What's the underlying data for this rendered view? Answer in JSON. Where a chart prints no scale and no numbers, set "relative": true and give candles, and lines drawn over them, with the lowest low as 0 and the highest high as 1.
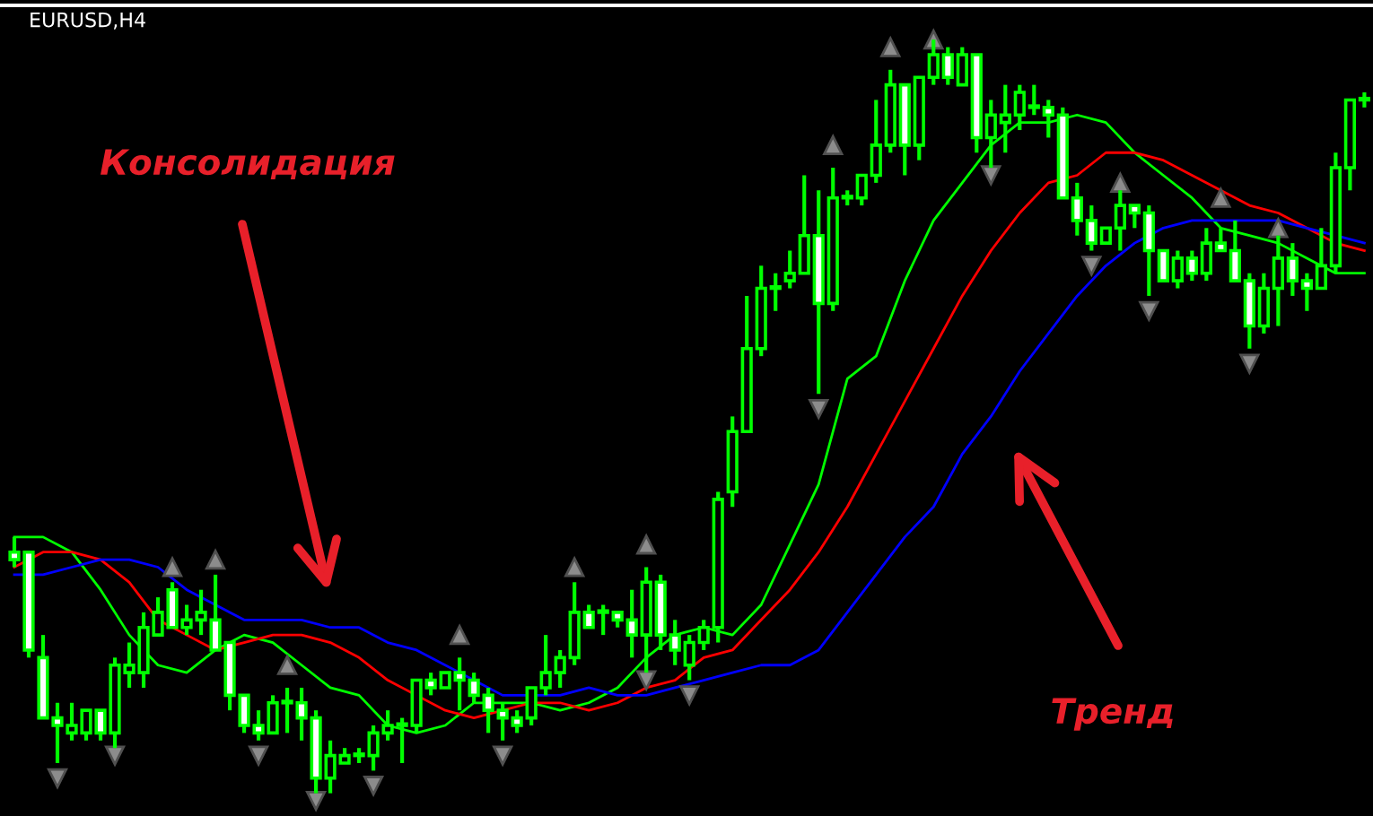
{
  "chart_data": {
    "type": "candlestick",
    "title": "EURUSD,H4",
    "relative": true,
    "color": "#00ff00",
    "colors": [
      "#ffffff",
      "#ffffff",
      "#ffffff",
      "#ffffff",
      "#000000",
      "#000000",
      "#ffffff",
      "#000000",
      "#000000",
      "#000000",
      "#000000",
      "#ffffff",
      "#000000",
      "#000000",
      "#ffffff",
      "#ffffff",
      "#ffffff",
      "#ffffff",
      "#000000",
      "#000000",
      "#ffffff",
      "#ffffff",
      "#000000",
      "#000000",
      "#ffffff",
      "#000000",
      "#000000",
      "#000000",
      "#000000",
      "#ffffff",
      "#000000",
      "#ffffff",
      "#ffffff",
      "#ffffff",
      "#ffffff",
      "#ffffff",
      "#000000",
      "#000000",
      "#000000",
      "#000000",
      "#ffffff",
      "#000000",
      "#ffffff",
      "#ffffff",
      "#000000",
      "#ffffff",
      "#ffffff",
      "#000000",
      "#000000",
      "#000000",
      "#000000",
      "#000000",
      "#000000",
      "#000000",
      "#000000",
      "#000000",
      "#ffffff",
      "#000000",
      "#ffffff",
      "#000000",
      "#000000",
      "#000000",
      "#ffffff",
      "#000000",
      "#000000",
      "#ffffff",
      "#000000",
      "#ffffff",
      "#000000",
      "#000000",
      "#000000",
      "#000000",
      "#ffffff",
      "#ffffff",
      "#ffffff",
      "#ffffff",
      "#000000",
      "#000000",
      "#ffffff",
      "#ffffff",
      "#ffffff",
      "#000000",
      "#ffffff",
      "#000000",
      "#ffffff",
      "#ffffff",
      "#ffffff",
      "#000000",
      "#000000",
      "#ffffff",
      "#ffffff",
      "#000000",
      "#000000",
      "#000000",
      "#000000"
    ],
    "categories": [
      null,
      null,
      null,
      null,
      null,
      null,
      null,
      null,
      null,
      null,
      null,
      null,
      null,
      null,
      null,
      null,
      null,
      null,
      null,
      null,
      null,
      null,
      null,
      null,
      null,
      null,
      null,
      null,
      null,
      null,
      null,
      null,
      null,
      null,
      null,
      null,
      null,
      null,
      null,
      null,
      null,
      null,
      null,
      null,
      null,
      null,
      null,
      null,
      null,
      null,
      null,
      null,
      null,
      null,
      null,
      null,
      null,
      null,
      null,
      null,
      null,
      null,
      null,
      null,
      null,
      null,
      null,
      null,
      null,
      null,
      null,
      null,
      null,
      null,
      null,
      null,
      null,
      null,
      null,
      null,
      null,
      null,
      null,
      null,
      null,
      null,
      null,
      null,
      null,
      null,
      null,
      null,
      null,
      null,
      null
    ],
    "ohlc": [
      [
        0.32,
        0.34,
        0.3,
        0.31
      ],
      [
        0.32,
        0.32,
        0.18,
        0.19
      ],
      [
        0.18,
        0.21,
        0.1,
        0.1
      ],
      [
        0.1,
        0.12,
        0.04,
        0.09
      ],
      [
        0.08,
        0.12,
        0.07,
        0.09
      ],
      [
        0.08,
        0.11,
        0.07,
        0.11
      ],
      [
        0.11,
        0.11,
        0.07,
        0.08
      ],
      [
        0.08,
        0.18,
        0.06,
        0.17
      ],
      [
        0.16,
        0.2,
        0.14,
        0.17
      ],
      [
        0.16,
        0.24,
        0.14,
        0.22
      ],
      [
        0.21,
        0.26,
        0.21,
        0.24
      ],
      [
        0.27,
        0.28,
        0.22,
        0.22
      ],
      [
        0.22,
        0.25,
        0.21,
        0.23
      ],
      [
        0.23,
        0.27,
        0.21,
        0.24
      ],
      [
        0.23,
        0.29,
        0.19,
        0.19
      ],
      [
        0.2,
        0.2,
        0.11,
        0.13
      ],
      [
        0.13,
        0.13,
        0.08,
        0.09
      ],
      [
        0.09,
        0.11,
        0.07,
        0.08
      ],
      [
        0.08,
        0.13,
        0.08,
        0.12
      ],
      [
        0.12,
        0.14,
        0.08,
        0.12
      ],
      [
        0.12,
        0.14,
        0.07,
        0.1
      ],
      [
        0.1,
        0.11,
        0.0,
        0.02
      ],
      [
        0.02,
        0.07,
        0.0,
        0.05
      ],
      [
        0.04,
        0.06,
        0.04,
        0.05
      ],
      [
        0.05,
        0.06,
        0.04,
        0.05
      ],
      [
        0.05,
        0.09,
        0.03,
        0.08
      ],
      [
        0.08,
        0.11,
        0.07,
        0.09
      ],
      [
        0.09,
        0.1,
        0.04,
        0.09
      ],
      [
        0.09,
        0.15,
        0.08,
        0.15
      ],
      [
        0.15,
        0.16,
        0.13,
        0.14
      ],
      [
        0.14,
        0.16,
        0.14,
        0.16
      ],
      [
        0.16,
        0.18,
        0.11,
        0.15
      ],
      [
        0.15,
        0.16,
        0.12,
        0.13
      ],
      [
        0.13,
        0.14,
        0.08,
        0.11
      ],
      [
        0.11,
        0.12,
        0.07,
        0.1
      ],
      [
        0.1,
        0.11,
        0.08,
        0.09
      ],
      [
        0.1,
        0.14,
        0.09,
        0.14
      ],
      [
        0.14,
        0.21,
        0.13,
        0.16
      ],
      [
        0.16,
        0.19,
        0.14,
        0.18
      ],
      [
        0.18,
        0.28,
        0.17,
        0.24
      ],
      [
        0.24,
        0.25,
        0.22,
        0.22
      ],
      [
        0.24,
        0.25,
        0.21,
        0.24
      ],
      [
        0.24,
        0.24,
        0.22,
        0.23
      ],
      [
        0.23,
        0.27,
        0.18,
        0.21
      ],
      [
        0.21,
        0.3,
        0.16,
        0.28
      ],
      [
        0.28,
        0.29,
        0.19,
        0.21
      ],
      [
        0.21,
        0.23,
        0.17,
        0.19
      ],
      [
        0.17,
        0.21,
        0.15,
        0.2
      ],
      [
        0.2,
        0.23,
        0.19,
        0.22
      ],
      [
        0.22,
        0.4,
        0.2,
        0.39
      ],
      [
        0.4,
        0.5,
        0.38,
        0.48
      ],
      [
        0.48,
        0.66,
        0.48,
        0.59
      ],
      [
        0.59,
        0.7,
        0.58,
        0.67
      ],
      [
        0.67,
        0.69,
        0.64,
        0.67
      ],
      [
        0.68,
        0.72,
        0.67,
        0.69
      ],
      [
        0.69,
        0.82,
        0.69,
        0.74
      ],
      [
        0.74,
        0.8,
        0.53,
        0.65
      ],
      [
        0.65,
        0.83,
        0.64,
        0.79
      ],
      [
        0.79,
        0.8,
        0.78,
        0.79
      ],
      [
        0.79,
        0.82,
        0.78,
        0.82
      ],
      [
        0.82,
        0.92,
        0.81,
        0.86
      ],
      [
        0.86,
        0.96,
        0.85,
        0.94
      ],
      [
        0.94,
        0.94,
        0.82,
        0.86
      ],
      [
        0.86,
        0.95,
        0.84,
        0.95
      ],
      [
        0.95,
        1.0,
        0.94,
        0.98
      ],
      [
        0.98,
        0.99,
        0.94,
        0.95
      ],
      [
        0.94,
        0.99,
        0.94,
        0.98
      ],
      [
        0.98,
        0.98,
        0.85,
        0.87
      ],
      [
        0.87,
        0.92,
        0.83,
        0.9
      ],
      [
        0.89,
        0.94,
        0.85,
        0.9
      ],
      [
        0.9,
        0.94,
        0.88,
        0.93
      ],
      [
        0.91,
        0.94,
        0.9,
        0.91
      ],
      [
        0.91,
        0.92,
        0.87,
        0.9
      ],
      [
        0.9,
        0.91,
        0.79,
        0.79
      ],
      [
        0.79,
        0.81,
        0.74,
        0.76
      ],
      [
        0.76,
        0.78,
        0.72,
        0.73
      ],
      [
        0.73,
        0.75,
        0.73,
        0.75
      ],
      [
        0.75,
        0.8,
        0.72,
        0.78
      ],
      [
        0.78,
        0.78,
        0.75,
        0.77
      ],
      [
        0.77,
        0.78,
        0.66,
        0.72
      ],
      [
        0.72,
        0.72,
        0.68,
        0.68
      ],
      [
        0.68,
        0.72,
        0.67,
        0.71
      ],
      [
        0.71,
        0.72,
        0.68,
        0.69
      ],
      [
        0.69,
        0.75,
        0.68,
        0.73
      ],
      [
        0.73,
        0.75,
        0.72,
        0.72
      ],
      [
        0.72,
        0.76,
        0.68,
        0.68
      ],
      [
        0.68,
        0.69,
        0.59,
        0.62
      ],
      [
        0.62,
        0.69,
        0.61,
        0.67
      ],
      [
        0.67,
        0.74,
        0.62,
        0.71
      ],
      [
        0.71,
        0.73,
        0.66,
        0.68
      ],
      [
        0.68,
        0.69,
        0.64,
        0.67
      ],
      [
        0.67,
        0.75,
        0.67,
        0.7
      ],
      [
        0.7,
        0.85,
        0.69,
        0.83
      ],
      [
        0.83,
        0.92,
        0.8,
        0.92
      ],
      [
        0.92,
        0.93,
        0.91,
        0.92
      ]
    ],
    "series": [
      {
        "type": "line",
        "color": "#00ff00",
        "values": [
          0.34,
          null,
          0.34,
          null,
          0.32,
          null,
          0.27,
          null,
          0.21,
          null,
          0.17,
          null,
          0.16,
          null,
          0.19,
          null,
          0.21,
          null,
          0.2,
          null,
          0.17,
          null,
          0.14,
          null,
          0.13,
          null,
          0.09,
          null,
          0.08,
          null,
          0.09,
          null,
          0.12,
          null,
          0.12,
          null,
          0.12,
          null,
          0.11,
          null,
          0.12,
          null,
          0.14,
          null,
          0.18,
          null,
          0.21,
          null,
          0.22,
          null,
          0.21,
          null,
          0.25,
          null,
          0.33,
          null,
          0.41,
          null,
          0.55,
          null,
          0.58,
          null,
          0.68,
          null,
          0.76,
          null,
          0.81,
          null,
          0.86,
          null,
          0.89,
          null,
          0.89,
          null,
          0.9,
          null,
          0.89,
          null,
          0.85,
          null,
          0.82,
          null,
          0.79,
          null,
          0.75,
          null,
          0.74,
          null,
          0.73,
          null,
          0.71,
          null,
          0.69,
          null,
          0.69
        ]
      },
      {
        "type": "line",
        "color": "#ff0000",
        "values": [
          0.3,
          null,
          0.32,
          null,
          0.32,
          null,
          0.31,
          null,
          0.28,
          null,
          0.23,
          null,
          0.21,
          null,
          0.19,
          null,
          0.2,
          null,
          0.21,
          null,
          0.21,
          null,
          0.2,
          null,
          0.18,
          null,
          0.15,
          null,
          0.13,
          null,
          0.11,
          null,
          0.1,
          null,
          0.11,
          null,
          0.12,
          null,
          0.12,
          null,
          0.11,
          null,
          0.12,
          null,
          0.14,
          null,
          0.15,
          null,
          0.18,
          null,
          0.19,
          null,
          0.23,
          null,
          0.27,
          null,
          0.32,
          null,
          0.38,
          null,
          0.45,
          null,
          0.52,
          null,
          0.59,
          null,
          0.66,
          null,
          0.72,
          null,
          0.77,
          null,
          0.81,
          null,
          0.82,
          null,
          0.85,
          null,
          0.85,
          null,
          0.84,
          null,
          0.82,
          null,
          0.8,
          null,
          0.78,
          null,
          0.77,
          null,
          0.75,
          null,
          0.73,
          null,
          0.72
        ]
      },
      {
        "type": "line",
        "color": "#0000ff",
        "values": [
          0.29,
          null,
          0.29,
          null,
          0.3,
          null,
          0.31,
          null,
          0.31,
          null,
          0.3,
          null,
          0.27,
          null,
          0.25,
          null,
          0.23,
          null,
          0.23,
          null,
          0.23,
          null,
          0.22,
          null,
          0.22,
          null,
          0.2,
          null,
          0.19,
          null,
          0.17,
          null,
          0.15,
          null,
          0.13,
          null,
          0.13,
          null,
          0.13,
          null,
          0.14,
          null,
          0.13,
          null,
          0.13,
          null,
          0.14,
          null,
          0.15,
          null,
          0.16,
          null,
          0.17,
          null,
          0.17,
          null,
          0.19,
          null,
          0.24,
          null,
          0.29,
          null,
          0.34,
          null,
          0.38,
          null,
          0.45,
          null,
          0.5,
          null,
          0.56,
          null,
          0.61,
          null,
          0.66,
          null,
          0.7,
          null,
          0.73,
          null,
          0.75,
          null,
          0.76,
          null,
          0.76,
          null,
          0.76,
          null,
          0.76,
          null,
          0.75,
          null,
          0.74,
          null,
          0.73
        ]
      },
      {
        "type": "scatter",
        "color": "#8c8c8c",
        "marker": "triangle",
        "values": [
          null,
          null,
          null,
          null,
          null,
          null,
          null,
          null,
          null,
          null,
          null,
          0.3,
          null,
          null,
          0.31,
          null,
          null,
          null,
          null,
          0.17,
          null,
          null,
          null,
          null,
          null,
          null,
          null,
          null,
          null,
          null,
          null,
          0.21,
          null,
          null,
          null,
          null,
          null,
          null,
          null,
          0.3,
          null,
          null,
          null,
          null,
          0.33,
          null,
          null,
          null,
          null,
          null,
          null,
          null,
          null,
          null,
          null,
          null,
          null,
          0.86,
          null,
          null,
          null,
          0.99,
          null,
          null,
          1.0,
          null,
          null,
          null,
          null,
          null,
          null,
          null,
          null,
          null,
          null,
          null,
          null,
          0.81,
          null,
          null,
          null,
          null,
          null,
          null,
          0.79,
          null,
          null,
          null,
          0.75,
          null,
          null,
          null,
          null,
          null,
          null
        ]
      },
      {
        "type": "scatter",
        "color": "#8c8c8c",
        "marker": "triangle",
        "values": [
          null,
          null,
          null,
          0.02,
          null,
          null,
          null,
          0.05,
          null,
          null,
          null,
          null,
          null,
          null,
          null,
          null,
          null,
          0.05,
          null,
          null,
          null,
          -0.01,
          null,
          null,
          null,
          0.01,
          null,
          null,
          null,
          null,
          null,
          null,
          null,
          null,
          0.05,
          null,
          null,
          null,
          null,
          null,
          null,
          null,
          null,
          null,
          0.15,
          null,
          null,
          0.13,
          null,
          null,
          null,
          null,
          null,
          null,
          null,
          null,
          0.51,
          null,
          null,
          null,
          null,
          null,
          null,
          null,
          null,
          null,
          null,
          null,
          0.82,
          null,
          null,
          null,
          null,
          null,
          null,
          0.7,
          null,
          null,
          null,
          0.64,
          null,
          null,
          null,
          null,
          null,
          null,
          0.57,
          null,
          null,
          null,
          null,
          null,
          null,
          null,
          null
        ]
      }
    ],
    "annotations": [
      "Консолидация",
      "Тренд"
    ]
  }
}
